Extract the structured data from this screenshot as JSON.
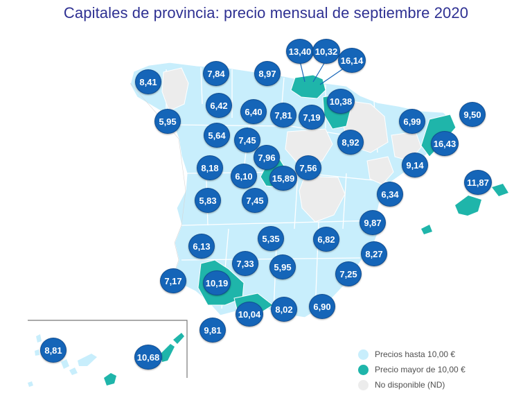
{
  "title": "Capitales de provincia: precio mensual de septiembre 2020",
  "colors": {
    "hasta_10": "#c8eefc",
    "mayor_10": "#1fb5aa",
    "nd": "#ececec",
    "bubble": "#1565b8",
    "title": "#2e3092"
  },
  "legend": [
    {
      "label": "Precios hasta 10,00 €",
      "color": "#c8eefc"
    },
    {
      "label": "Precio mayor de 10,00 €",
      "color": "#1fb5aa"
    },
    {
      "label": "No disponible (ND)",
      "color": "#ececec"
    }
  ],
  "values": {
    "san_sebastian": "13,40",
    "bilbao": "10,32",
    "vitoria": "16,14",
    "coruna": "8,41",
    "oviedo": "7,84",
    "santander": "8,97",
    "lugo": "6,42",
    "leon": "6,40",
    "burgos": "7,81",
    "logrono": "7,19",
    "pamplona": "10,38",
    "pontevedra": "5,95",
    "zamora": "5,64",
    "valladolid": "7,45",
    "lleida": "6,99",
    "girona": "9,50",
    "barcelona": "16,43",
    "zaragoza": "8,92",
    "segovia": "7,96",
    "salamanca": "8,18",
    "avila": "6,10",
    "madrid": "15,89",
    "guadalajara": "7,56",
    "tarragona": "9,14",
    "palma": "11,87",
    "caceres": "5,83",
    "toledo": "7,45",
    "castellon": "6,34",
    "valencia": "9,87",
    "badajoz": "6,13",
    "ciudad_real": "5,35",
    "albacete": "6,82",
    "alicante": "8,27",
    "cordoba": "7,33",
    "jaen": "5,95",
    "murcia": "7,25",
    "huelva": "7,17",
    "sevilla": "10,19",
    "malaga": "10,04",
    "granada": "8,02",
    "almeria": "6,90",
    "cadiz": "9,81",
    "tenerife": "8,81",
    "las_palmas": "10,68"
  }
}
